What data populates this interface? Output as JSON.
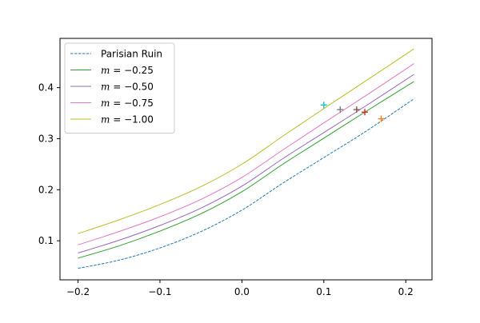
{
  "chart_data": {
    "type": "line",
    "title": "",
    "xlabel": "",
    "ylabel": "",
    "xlim": [
      -0.222,
      0.232
    ],
    "ylim": [
      0.0235,
      0.4965
    ],
    "grid": false,
    "legend_placement": "top-left",
    "x_ticks": [
      {
        "value": -0.2,
        "label": "−0.2"
      },
      {
        "value": -0.1,
        "label": "−0.1"
      },
      {
        "value": 0.0,
        "label": "0.0"
      },
      {
        "value": 0.1,
        "label": "0.1"
      },
      {
        "value": 0.2,
        "label": "0.2"
      }
    ],
    "y_ticks": [
      {
        "value": 0.1,
        "label": "0.1"
      },
      {
        "value": 0.2,
        "label": "0.2"
      },
      {
        "value": 0.3,
        "label": "0.3"
      },
      {
        "value": 0.4,
        "label": "0.4"
      }
    ],
    "series": [
      {
        "name": "Parisian Ruin",
        "legend_prefix": "",
        "legend_value": "",
        "color": "#1f77b4",
        "dashed": true,
        "x": [
          -0.2,
          -0.15,
          -0.1,
          -0.05,
          0.0,
          0.05,
          0.1,
          0.15,
          0.21
        ],
        "y": [
          0.046,
          0.062,
          0.086,
          0.118,
          0.16,
          0.213,
          0.263,
          0.313,
          0.378
        ]
      },
      {
        "name": "m = −0.25",
        "legend_prefix": "m",
        "legend_value": " = −0.25",
        "color": "#2ca02c",
        "dashed": false,
        "x": [
          -0.2,
          -0.15,
          -0.1,
          -0.05,
          0.0,
          0.05,
          0.1,
          0.15,
          0.21
        ],
        "y": [
          0.066,
          0.09,
          0.119,
          0.153,
          0.196,
          0.25,
          0.301,
          0.352,
          0.412
        ]
      },
      {
        "name": "m = −0.50",
        "legend_prefix": "m",
        "legend_value": " = −0.50",
        "color": "#9467bd",
        "dashed": false,
        "x": [
          -0.2,
          -0.15,
          -0.1,
          -0.05,
          0.0,
          0.05,
          0.1,
          0.15,
          0.21
        ],
        "y": [
          0.076,
          0.101,
          0.13,
          0.164,
          0.207,
          0.261,
          0.312,
          0.363,
          0.426
        ]
      },
      {
        "name": "m = −0.75",
        "legend_prefix": "m",
        "legend_value": " = −0.75",
        "color": "#e377c2",
        "dashed": false,
        "x": [
          -0.2,
          -0.15,
          -0.1,
          -0.05,
          0.0,
          0.05,
          0.1,
          0.15,
          0.21
        ],
        "y": [
          0.092,
          0.118,
          0.147,
          0.181,
          0.224,
          0.278,
          0.331,
          0.383,
          0.447
        ]
      },
      {
        "name": "m = −1.00",
        "legend_prefix": "m",
        "legend_value": " = −1.00",
        "color": "#bcbd22",
        "dashed": false,
        "x": [
          -0.2,
          -0.15,
          -0.1,
          -0.05,
          0.0,
          0.05,
          0.1,
          0.15,
          0.21
        ],
        "y": [
          0.114,
          0.141,
          0.171,
          0.206,
          0.25,
          0.305,
          0.359,
          0.412,
          0.476
        ]
      }
    ],
    "markers": [
      {
        "x": 0.17,
        "y": 0.339,
        "color": "#ff7f0e"
      },
      {
        "x": 0.15,
        "y": 0.352,
        "color": "#d62728"
      },
      {
        "x": 0.14,
        "y": 0.357,
        "color": "#8c564b"
      },
      {
        "x": 0.12,
        "y": 0.357,
        "color": "#7f7f7f"
      },
      {
        "x": 0.1,
        "y": 0.366,
        "color": "#17becf"
      }
    ]
  }
}
